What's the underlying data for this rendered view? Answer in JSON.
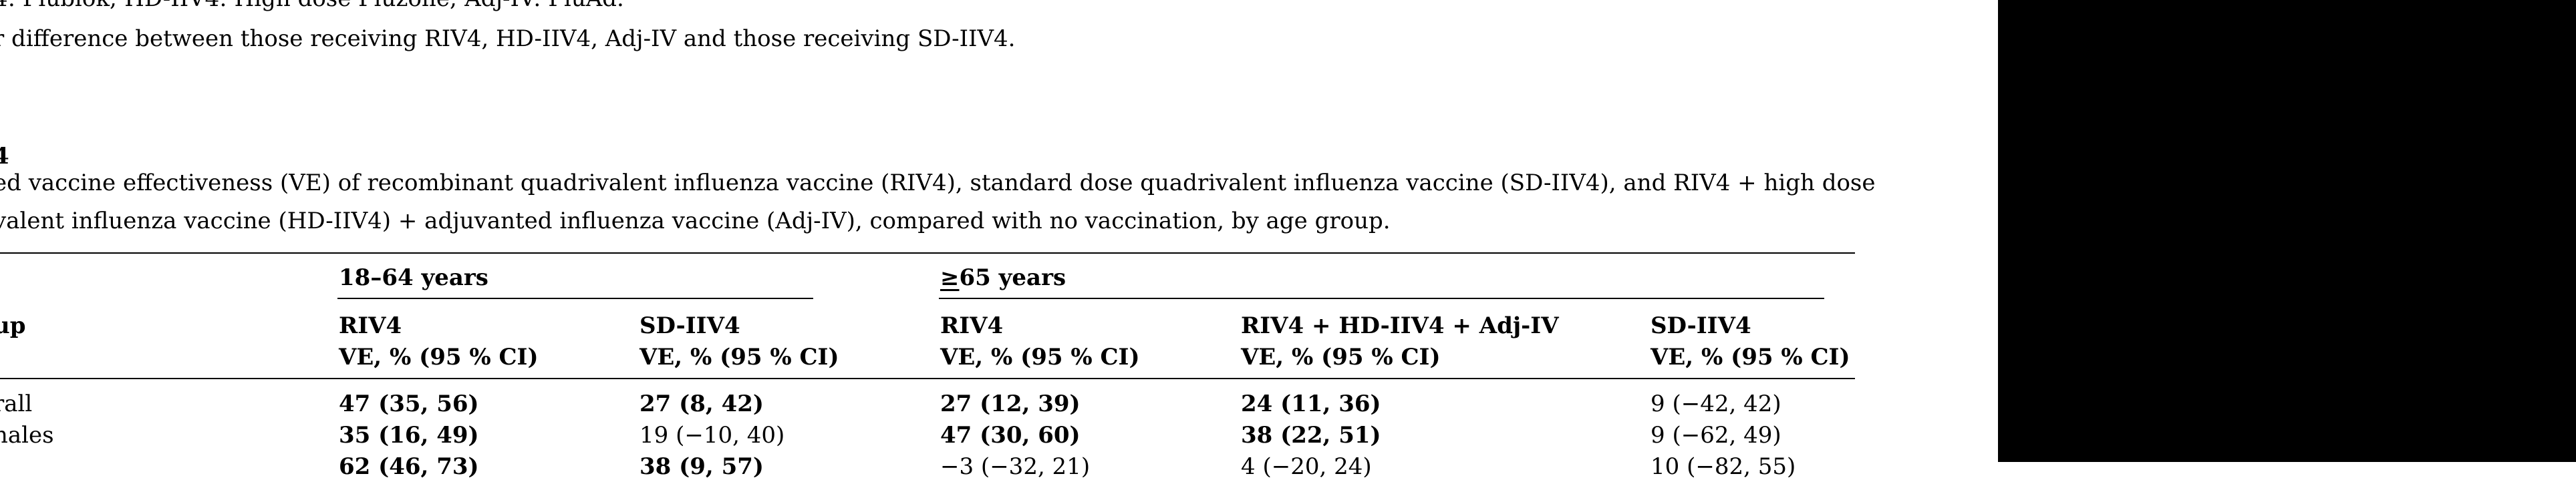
{
  "footnotes": {
    "line1": "4: Flublok; HD-IIV4: High dose Fluzone; Adj-IV: FluAd.",
    "line2": "r difference between those receiving RIV4, HD-IIV4, Adj-IV and those receiving SD-IIV4."
  },
  "table": {
    "label": "4",
    "caption_line1": "ed vaccine effectiveness (VE) of recombinant quadrivalent influenza vaccine (RIV4), standard dose quadrivalent influenza vaccine (SD-IIV4), and RIV4 + high dose",
    "caption_line2": "valent influenza vaccine (HD-IIV4) + adjuvanted influenza vaccine (Adj-IV), compared with no vaccination, by age group.",
    "group_col_header": "up",
    "age_groups": {
      "young": "18–64 years",
      "old_symbol": "≥",
      "old_text": "65 years"
    },
    "columns": [
      {
        "vaccine": "RIV4",
        "metric": "VE, % (95 % CI)"
      },
      {
        "vaccine": "SD-IIV4",
        "metric": "VE, % (95 % CI)"
      },
      {
        "vaccine": "RIV4",
        "metric": "VE, % (95 % CI)"
      },
      {
        "vaccine": "RIV4 + HD-IIV4 + Adj-IV",
        "metric": "VE, % (95 % CI)"
      },
      {
        "vaccine": "SD-IIV4",
        "metric": "VE, % (95 % CI)"
      }
    ],
    "rows": [
      {
        "group": "rall",
        "values": [
          "47 (35, 56)",
          "27 (8, 42)",
          "27 (12, 39)",
          "24 (11, 36)",
          "9 (−42, 42)"
        ]
      },
      {
        "group": "nales",
        "values": [
          "35 (16, 49)",
          "19 (−10, 40)",
          "47 (30, 60)",
          "38 (22, 51)",
          "9 (−62, 49)"
        ]
      },
      {
        "group": "",
        "values": [
          "62 (46, 73)",
          "38 (9, 57)",
          "−3 (−32, 21)",
          "4 (−20, 24)",
          "10 (−82, 55)"
        ]
      }
    ]
  }
}
